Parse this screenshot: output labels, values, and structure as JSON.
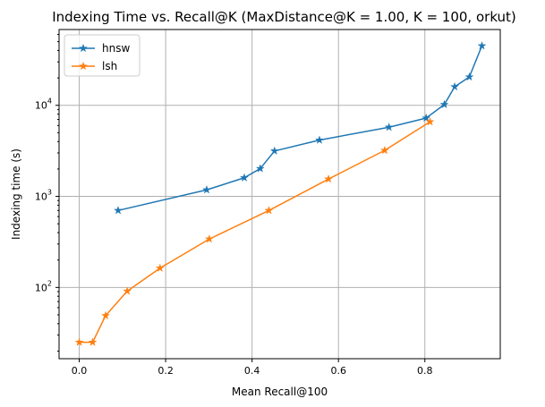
{
  "chart_data": {
    "type": "line",
    "title": "Indexing Time vs. Recall@K (MaxDistance@K = 1.00, K = 100, orkut)",
    "xlabel": "Mean Recall@100",
    "ylabel": "Indexing time (s)",
    "xlim": [
      -0.0467,
      0.9745
    ],
    "ylim": [
      16.5,
      68000
    ],
    "y_scale": "log",
    "grid": true,
    "legend_position": "top-left",
    "x_ticks": [
      {
        "value": 0.0,
        "label": "0.0"
      },
      {
        "value": 0.2,
        "label": "0.2"
      },
      {
        "value": 0.4,
        "label": "0.4"
      },
      {
        "value": 0.6,
        "label": "0.6"
      },
      {
        "value": 0.8,
        "label": "0.8"
      }
    ],
    "y_ticks": [
      {
        "value": 100,
        "base": "10",
        "exp": "2"
      },
      {
        "value": 1000,
        "base": "10",
        "exp": "3"
      },
      {
        "value": 10000,
        "base": "10",
        "exp": "4"
      }
    ],
    "series": [
      {
        "name": "hnsw",
        "color": "#1f77b4",
        "marker": "star",
        "points": [
          [
            0.09,
            700
          ],
          [
            0.295,
            1180
          ],
          [
            0.382,
            1600
          ],
          [
            0.419,
            2020
          ],
          [
            0.452,
            3150
          ],
          [
            0.556,
            4150
          ],
          [
            0.717,
            5750
          ],
          [
            0.803,
            7250
          ],
          [
            0.845,
            10200
          ],
          [
            0.869,
            16000
          ],
          [
            0.903,
            20500
          ],
          [
            0.932,
            45000
          ]
        ]
      },
      {
        "name": "lsh",
        "color": "#ff7f0e",
        "marker": "star",
        "points": [
          [
            0.0,
            25
          ],
          [
            0.031,
            25
          ],
          [
            0.061,
            49
          ],
          [
            0.111,
            91
          ],
          [
            0.187,
            163
          ],
          [
            0.301,
            340
          ],
          [
            0.439,
            700
          ],
          [
            0.577,
            1550
          ],
          [
            0.707,
            3200
          ],
          [
            0.812,
            6600
          ]
        ]
      }
    ]
  }
}
